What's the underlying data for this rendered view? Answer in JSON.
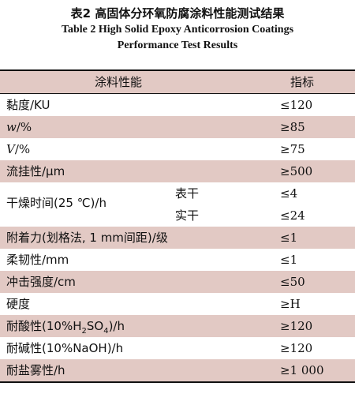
{
  "caption": {
    "cn": "表2  高固体分环氧防腐涂料性能测试结果",
    "en_line1": "Table 2 High Solid Epoxy Anticorrosion Coatings",
    "en_line2": "Performance Test Results"
  },
  "header": {
    "property": "涂料性能",
    "index": "指标"
  },
  "rows": [
    {
      "name": "黏度/KU",
      "value": "≤120"
    },
    {
      "name": "w/%",
      "value": "≥85"
    },
    {
      "name": "V/%",
      "value": "≥75"
    },
    {
      "name": "流挂性/μm",
      "value": "≥500"
    },
    {
      "name": "干燥时间(25 ℃)/h",
      "sub1": "表干",
      "value1": "≤4",
      "sub2": "实干",
      "value2": "≤24"
    },
    {
      "name": "附着力(划格法, 1 mm间距)/级",
      "value": "≤1"
    },
    {
      "name": "柔韧性/mm",
      "value": "≤1"
    },
    {
      "name": "冲击强度/cm",
      "value": "≤50"
    },
    {
      "name": "硬度",
      "value": "≥H"
    },
    {
      "name": "耐酸性(10%H2SO4)/h",
      "value": "≥120"
    },
    {
      "name": "耐碱性(10%NaOH)/h",
      "value": "≥120"
    },
    {
      "name": "耐盐雾性/h",
      "value": "≥1 000"
    }
  ],
  "colors": {
    "shade": "#e2c9c4",
    "rule": "#111111"
  }
}
